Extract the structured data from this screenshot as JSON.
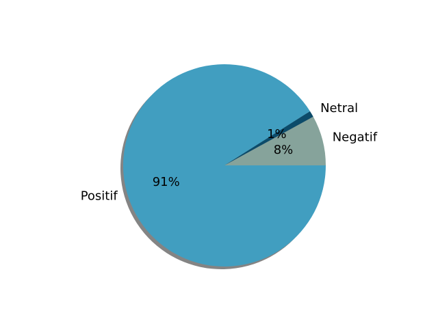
{
  "chart_data": {
    "type": "pie",
    "title": "",
    "shadow": true,
    "start_angle_deg": 0,
    "direction": "counterclockwise",
    "slices": [
      {
        "label": "Negatif",
        "percent_label": "8%",
        "value": 8,
        "color": "#86a39b"
      },
      {
        "label": "Netral",
        "percent_label": "1%",
        "value": 1,
        "color": "#0c4b6a"
      },
      {
        "label": "Positif",
        "percent_label": "91%",
        "value": 91,
        "color": "#419ec0"
      }
    ]
  }
}
